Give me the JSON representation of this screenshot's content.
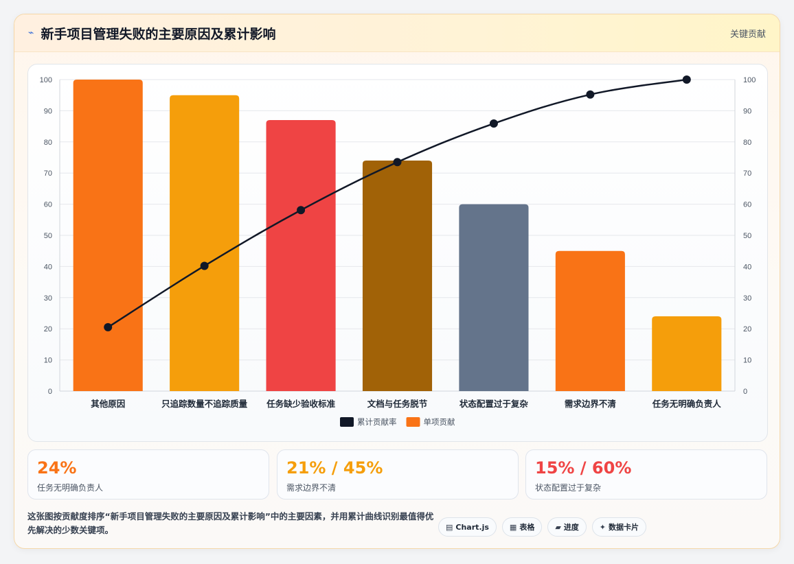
{
  "header": {
    "icon": "lightning-icon",
    "title": "新手项目管理失败的主要原因及累计影响",
    "right_label": "关键贡献"
  },
  "chart_data": {
    "type": "bar",
    "categories": [
      "其他原因",
      "只追踪数量不追踪质量",
      "任务缺少验收标准",
      "文档与任务脱节",
      "状态配置过于复杂",
      "需求边界不清",
      "任务无明确负责人"
    ],
    "series": [
      {
        "name": "单项贡献",
        "type": "bar",
        "values": [
          100,
          95,
          87,
          74,
          60,
          45,
          24
        ]
      },
      {
        "name": "累计贡献率",
        "type": "line",
        "values": [
          20.5,
          40.2,
          58.1,
          73.5,
          85.9,
          95.2,
          100
        ]
      }
    ],
    "bar_colors": [
      "#f97316",
      "#f59e0b",
      "#ef4444",
      "#a16207",
      "#64748b",
      "#f97316",
      "#f59e0b"
    ],
    "line_color": "#111827",
    "legend_colors": [
      "#111827",
      "#f97316"
    ],
    "legend_order": [
      "累计贡献率",
      "单项贡献"
    ],
    "legend_position": "bottom",
    "ylim": [
      0,
      100
    ],
    "y2lim": [
      0,
      100
    ],
    "yticks": [
      0,
      10,
      20,
      30,
      40,
      50,
      60,
      70,
      80,
      90,
      100
    ],
    "grid": true
  },
  "stats": [
    {
      "value": "24%",
      "label": "任务无明确负责人",
      "color": "#f97316"
    },
    {
      "value": "21% / 45%",
      "label": "需求边界不清",
      "color": "#f59e0b"
    },
    {
      "value": "15% / 60%",
      "label": "状态配置过于复杂",
      "color": "#ef4444"
    }
  ],
  "description": "这张图按贡献度排序“新手项目管理失败的主要原因及累计影响”中的主要因素，并用累计曲线识别最值得优先解决的少数关键项。",
  "badges": [
    {
      "icon": "▤",
      "label": "Chart.js"
    },
    {
      "icon": "▦",
      "label": "表格"
    },
    {
      "icon": "▰",
      "label": "进度"
    },
    {
      "icon": "✦",
      "label": "数据卡片"
    }
  ]
}
